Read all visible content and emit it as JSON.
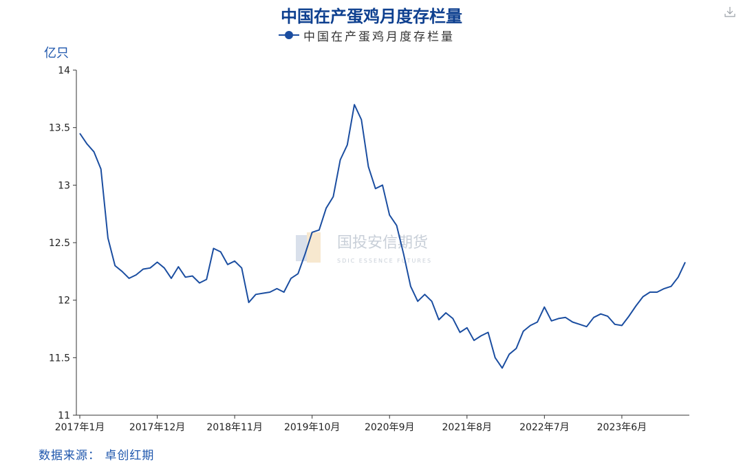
{
  "header": {
    "title": "中国在产蛋鸡月度存栏量",
    "legend_label": "中国在产蛋鸡月度存栏量"
  },
  "watermark": {
    "name": "国投安信期货",
    "sub": "SDIC ESSENCE FUTURES"
  },
  "footer": {
    "source": "数据来源： 卓创红期"
  },
  "colors": {
    "series": "#1a4da0",
    "axis": "#333333",
    "title": "#0d3f8f",
    "watermark": "#c8cfd8"
  },
  "chart_data": {
    "type": "line",
    "ylabel": "亿只",
    "ylim": [
      11,
      14
    ],
    "yticks": [
      {
        "value": 11,
        "label": "11"
      },
      {
        "value": 11.5,
        "label": "11.5"
      },
      {
        "value": 12,
        "label": "12"
      },
      {
        "value": 12.5,
        "label": "12.5"
      },
      {
        "value": 13,
        "label": "13"
      },
      {
        "value": 13.5,
        "label": "13.5"
      },
      {
        "value": 14,
        "label": "14"
      }
    ],
    "xticks": [
      {
        "index": 0,
        "label": "2017年1月"
      },
      {
        "index": 11,
        "label": "2017年12月"
      },
      {
        "index": 22,
        "label": "2018年11月"
      },
      {
        "index": 33,
        "label": "2019年10月"
      },
      {
        "index": 44,
        "label": "2020年9月"
      },
      {
        "index": 55,
        "label": "2021年8月"
      },
      {
        "index": 66,
        "label": "2022年7月"
      },
      {
        "index": 77,
        "label": "2023年6月"
      }
    ],
    "grid": false,
    "legend_position": "top",
    "series": [
      {
        "name": "中国在产蛋鸡月度存栏量",
        "start": "2017年1月",
        "values": [
          13.45,
          13.36,
          13.29,
          13.14,
          12.54,
          12.3,
          12.25,
          12.19,
          12.22,
          12.27,
          12.28,
          12.33,
          12.28,
          12.19,
          12.29,
          12.2,
          12.21,
          12.15,
          12.18,
          12.45,
          12.42,
          12.31,
          12.34,
          12.28,
          11.98,
          12.05,
          12.06,
          12.07,
          12.1,
          12.07,
          12.19,
          12.23,
          12.4,
          12.59,
          12.61,
          12.8,
          12.9,
          13.22,
          13.35,
          13.7,
          13.57,
          13.16,
          12.97,
          13.0,
          12.74,
          12.65,
          12.4,
          12.12,
          11.99,
          12.05,
          11.99,
          11.83,
          11.89,
          11.84,
          11.72,
          11.76,
          11.65,
          11.69,
          11.72,
          11.5,
          11.41,
          11.53,
          11.58,
          11.73,
          11.78,
          11.81,
          11.94,
          11.82,
          11.84,
          11.85,
          11.81,
          11.79,
          11.77,
          11.85,
          11.88,
          11.86,
          11.79,
          11.78,
          11.86,
          11.95,
          12.03,
          12.07,
          12.07,
          12.1,
          12.12,
          12.2,
          12.33
        ]
      }
    ]
  }
}
